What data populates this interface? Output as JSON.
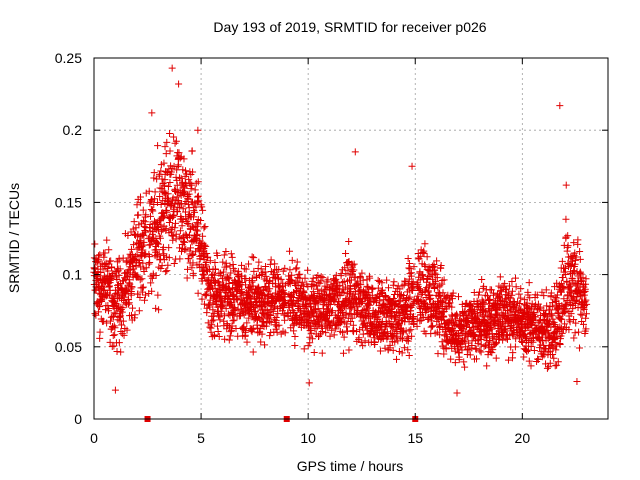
{
  "chart_data": {
    "type": "scatter",
    "title": "Day 193 of 2019, SRMTID for receiver p026",
    "xlabel": "GPS time / hours",
    "ylabel": "SRMTID / TECUs",
    "xlim": [
      0,
      24
    ],
    "ylim": [
      0,
      0.25
    ],
    "x_ticks": [
      0,
      5,
      10,
      15,
      20
    ],
    "x_tick_labels": [
      "0",
      "5",
      "10",
      "15",
      "20"
    ],
    "y_ticks": [
      0,
      0.05,
      0.1,
      0.15,
      0.2,
      0.25
    ],
    "y_tick_labels": [
      "0",
      "0.05",
      "0.1",
      "0.15",
      "0.2",
      "0.25"
    ],
    "grid": true,
    "marker": "plus",
    "color": "#e00000",
    "data_gap_markers_x": [
      2.5,
      9.0,
      15.0
    ],
    "envelope": {
      "x": [
        0,
        0.5,
        1,
        1.5,
        2,
        2.5,
        3,
        3.5,
        4,
        4.5,
        5,
        5.5,
        6,
        6.5,
        7,
        7.5,
        8,
        8.5,
        9,
        9.5,
        10,
        10.5,
        11,
        11.5,
        12,
        12.5,
        13,
        13.5,
        14,
        14.5,
        15,
        15.5,
        16,
        16.5,
        17,
        17.5,
        18,
        18.5,
        19,
        19.5,
        20,
        20.5,
        21,
        21.5,
        22,
        22.5,
        23
      ],
      "mean": [
        0.1,
        0.09,
        0.08,
        0.09,
        0.11,
        0.12,
        0.13,
        0.15,
        0.15,
        0.14,
        0.12,
        0.085,
        0.085,
        0.085,
        0.08,
        0.08,
        0.08,
        0.085,
        0.085,
        0.08,
        0.075,
        0.075,
        0.075,
        0.08,
        0.085,
        0.075,
        0.07,
        0.07,
        0.07,
        0.075,
        0.085,
        0.09,
        0.08,
        0.065,
        0.06,
        0.065,
        0.07,
        0.07,
        0.075,
        0.07,
        0.065,
        0.065,
        0.06,
        0.06,
        0.09,
        0.09,
        0.085
      ],
      "spread": [
        0.03,
        0.035,
        0.035,
        0.035,
        0.04,
        0.045,
        0.05,
        0.05,
        0.05,
        0.045,
        0.04,
        0.03,
        0.03,
        0.03,
        0.03,
        0.03,
        0.03,
        0.03,
        0.03,
        0.03,
        0.028,
        0.028,
        0.028,
        0.03,
        0.035,
        0.03,
        0.028,
        0.028,
        0.028,
        0.03,
        0.035,
        0.035,
        0.03,
        0.025,
        0.025,
        0.025,
        0.028,
        0.028,
        0.03,
        0.028,
        0.025,
        0.025,
        0.025,
        0.03,
        0.04,
        0.035,
        0.03
      ]
    },
    "notable_points": [
      {
        "x": 3.65,
        "y": 0.243
      },
      {
        "x": 3.95,
        "y": 0.232
      },
      {
        "x": 2.7,
        "y": 0.212
      },
      {
        "x": 4.85,
        "y": 0.2
      },
      {
        "x": 12.2,
        "y": 0.185
      },
      {
        "x": 14.85,
        "y": 0.175
      },
      {
        "x": 21.75,
        "y": 0.217
      },
      {
        "x": 22.05,
        "y": 0.162
      },
      {
        "x": 1.0,
        "y": 0.02
      },
      {
        "x": 16.95,
        "y": 0.018
      },
      {
        "x": 10.05,
        "y": 0.025
      },
      {
        "x": 22.55,
        "y": 0.026
      }
    ],
    "sample_interval_hours": 0.0167
  }
}
